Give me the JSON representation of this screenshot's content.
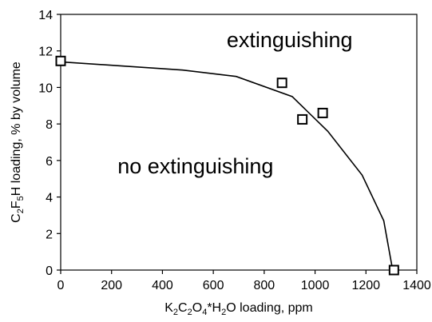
{
  "chart_data": {
    "type": "scatter",
    "title": "",
    "xlabel": {
      "parts": [
        {
          "text": "K",
          "sub": false
        },
        {
          "text": "2",
          "sub": true
        },
        {
          "text": "C",
          "sub": false
        },
        {
          "text": "2",
          "sub": true
        },
        {
          "text": "O",
          "sub": false
        },
        {
          "text": "4",
          "sub": true
        },
        {
          "text": "*H",
          "sub": false
        },
        {
          "text": "2",
          "sub": true
        },
        {
          "text": "O loading, ppm",
          "sub": false
        }
      ]
    },
    "ylabel": {
      "parts": [
        {
          "text": "C",
          "sub": false
        },
        {
          "text": "2",
          "sub": true
        },
        {
          "text": "F",
          "sub": false
        },
        {
          "text": "5",
          "sub": true
        },
        {
          "text": "H loading, % by volume",
          "sub": false
        }
      ]
    },
    "xlim": [
      0,
      1400
    ],
    "ylim": [
      0,
      14
    ],
    "xticks": [
      "0",
      "200",
      "400",
      "600",
      "800",
      "1000",
      "1200",
      "1400"
    ],
    "yticks": [
      "0",
      "2",
      "4",
      "6",
      "8",
      "10",
      "12",
      "14"
    ],
    "grid": false,
    "series": [
      {
        "kind": "points",
        "marker": "open-square",
        "x": [
          0,
          870,
          950,
          1030,
          1310
        ],
        "y": [
          11.45,
          10.25,
          8.25,
          8.6,
          0
        ]
      },
      {
        "kind": "line",
        "x": [
          0,
          480,
          690,
          910,
          1050,
          1185,
          1270,
          1305
        ],
        "y": [
          11.4,
          10.95,
          10.6,
          9.5,
          7.6,
          5.2,
          2.7,
          0
        ]
      }
    ],
    "annotations": [
      {
        "text": "extinguishing",
        "x": 900,
        "y": 12.2
      },
      {
        "text": "no extinguishing",
        "x": 530,
        "y": 5.3
      }
    ]
  }
}
